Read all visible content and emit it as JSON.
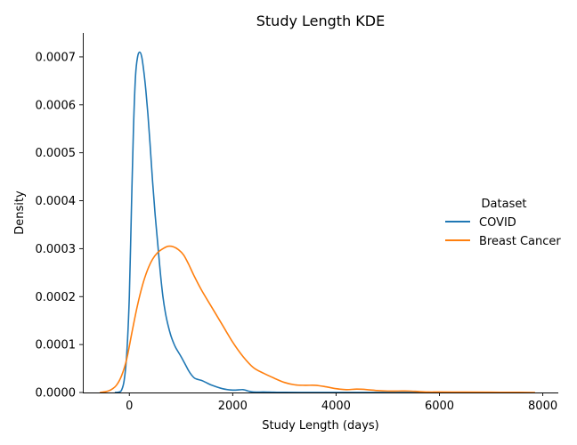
{
  "chart_data": {
    "type": "line",
    "title": "Study Length KDE",
    "xlabel": "Study Length (days)",
    "ylabel": "Density",
    "xlim": [
      -900,
      8300
    ],
    "ylim": [
      0,
      0.00075
    ],
    "xticks": [
      0,
      2000,
      4000,
      6000,
      8000
    ],
    "yticks": [
      0,
      0.0001,
      0.0002,
      0.0003,
      0.0004,
      0.0005,
      0.0006,
      0.0007
    ],
    "ytick_labels": [
      "0.0000",
      "0.0001",
      "0.0002",
      "0.0003",
      "0.0004",
      "0.0005",
      "0.0006",
      "0.0007"
    ],
    "grid": false,
    "legend": {
      "title": "Dataset",
      "placement": "right"
    },
    "series": [
      {
        "name": "COVID",
        "color": "#1f77b4",
        "x": [
          -280,
          -200,
          -150,
          -100,
          -50,
          0,
          40,
          80,
          120,
          160,
          200,
          240,
          280,
          320,
          360,
          400,
          450,
          500,
          550,
          600,
          650,
          700,
          750,
          800,
          850,
          900,
          1000,
          1100,
          1150,
          1200,
          1250,
          1300,
          1400,
          1500,
          1600,
          1800,
          2000,
          2200,
          2300,
          2400,
          2600,
          2800,
          3000,
          3500,
          4000,
          5000,
          6000,
          6200
        ],
        "y": [
          0.0,
          1e-06,
          5e-06,
          2.5e-05,
          8e-05,
          0.0002,
          0.00038,
          0.00055,
          0.00066,
          0.0007,
          0.00071,
          0.0007,
          0.00067,
          0.00063,
          0.00058,
          0.00052,
          0.00044,
          0.00037,
          0.00031,
          0.00025,
          0.0002,
          0.000165,
          0.00014,
          0.00012,
          0.000105,
          9.3e-05,
          7.5e-05,
          5.5e-05,
          4.5e-05,
          3.7e-05,
          3.1e-05,
          2.8e-05,
          2.5e-05,
          2e-05,
          1.5e-05,
          8e-06,
          5e-06,
          6e-06,
          3e-06,
          1e-06,
          1e-06,
          5e-07,
          3e-07,
          2e-07,
          1e-07,
          1e-07,
          2e-07,
          0.0
        ]
      },
      {
        "name": "Breast Cancer",
        "color": "#ff7f0e",
        "x": [
          -570,
          -450,
          -350,
          -250,
          -150,
          -50,
          50,
          150,
          250,
          350,
          450,
          550,
          650,
          750,
          850,
          950,
          1050,
          1150,
          1250,
          1400,
          1600,
          1800,
          2000,
          2200,
          2400,
          2600,
          2800,
          3000,
          3200,
          3400,
          3600,
          3800,
          4000,
          4200,
          4400,
          4600,
          4800,
          5000,
          5200,
          5400,
          5600,
          5800,
          6000,
          6500,
          7000,
          7500,
          7850
        ],
        "y": [
          0.0,
          2e-06,
          6e-06,
          1.5e-05,
          3.5e-05,
          7e-05,
          0.000125,
          0.000178,
          0.000222,
          0.000255,
          0.000278,
          0.000292,
          0.0003,
          0.000305,
          0.000304,
          0.000298,
          0.000287,
          0.000267,
          0.000244,
          0.000213,
          0.000177,
          0.000141,
          0.000105,
          7.5e-05,
          5.2e-05,
          4e-05,
          3e-05,
          2.1e-05,
          1.6e-05,
          1.5e-05,
          1.5e-05,
          1.2e-05,
          8e-06,
          6e-06,
          7e-06,
          6e-06,
          4e-06,
          3e-06,
          3e-06,
          3e-06,
          2e-06,
          1e-06,
          1e-06,
          8e-07,
          5e-07,
          3e-07,
          0.0
        ]
      }
    ]
  }
}
